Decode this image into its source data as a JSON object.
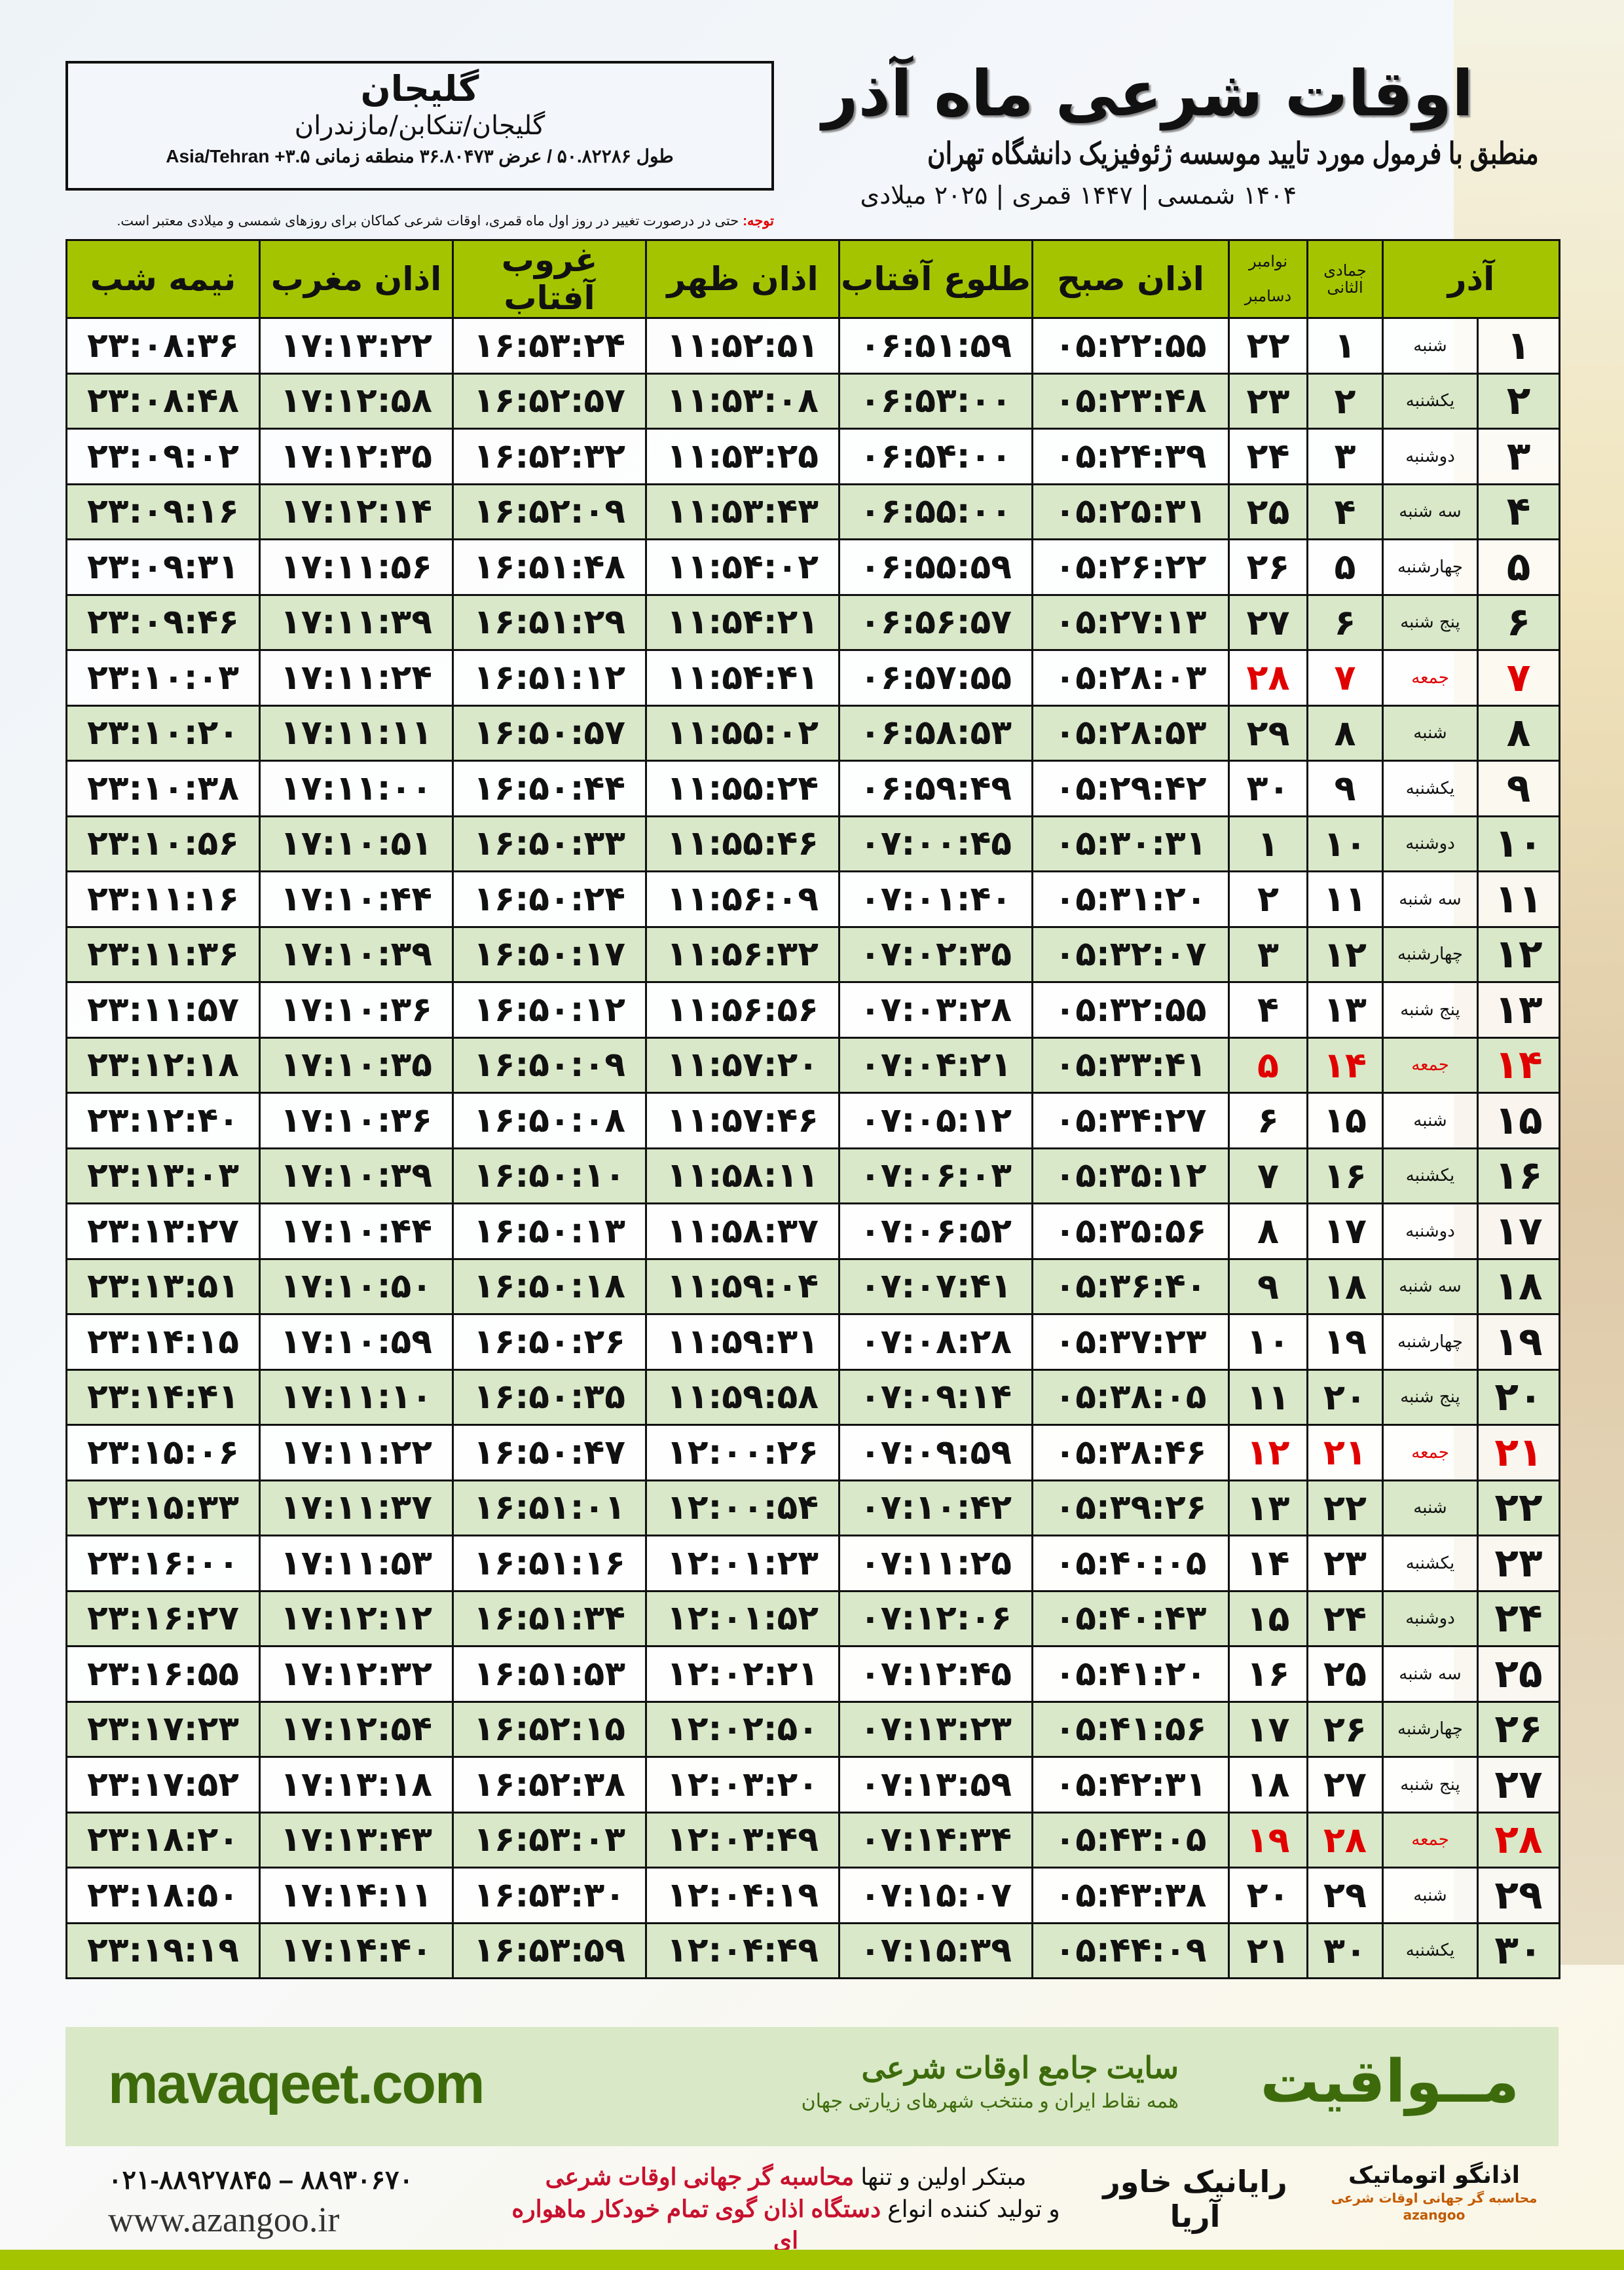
{
  "location": {
    "city": "گلیجان",
    "path": "گلیجان/تنکابن/مازندران",
    "coords": "طول ۵۰.۸۲۲۸۶ / عرض ۳۶.۸۰۴۷۳ منطقه زمانی ۳.۵+ Asia/Tehran"
  },
  "header": {
    "title": "اوقات شرعی ماه آذر",
    "subtitle": "منطبق با فرمول مورد تایید موسسه ژئوفیزیک دانشگاه تهران",
    "dates": "۱۴۰۴ شمسی | ۱۴۴۷ قمری | ۲۰۲۵ میلادی"
  },
  "note": {
    "label": "توجه:",
    "text": " حتی در درصورت تغییر در روز اول ماه قمری، اوقات شرعی کماکان برای روزهای شمسی و میلادی معتبر است."
  },
  "table": {
    "headers": {
      "azar": "آذر",
      "hijri": "جمادی الثانی",
      "greg_top": "نوامبر",
      "greg_bottom": "دسامبر",
      "sobh": "اذان صبح",
      "tolu": "طلوع آفتاب",
      "zuhr": "اذان ظهر",
      "ghurub": "غروب آفتاب",
      "maghrib": "اذان مغرب",
      "nimeh": "نیمه شب"
    },
    "highlight_color": "#e00000",
    "rows": [
      [
        "۱",
        "شنبه",
        "۱",
        "۲۲",
        "۰۵:۲۲:۵۵",
        "۰۶:۵۱:۵۹",
        "۱۱:۵۲:۵۱",
        "۱۶:۵۳:۲۴",
        "۱۷:۱۳:۲۲",
        "۲۳:۰۸:۳۶"
      ],
      [
        "۲",
        "یکشنبه",
        "۲",
        "۲۳",
        "۰۵:۲۳:۴۸",
        "۰۶:۵۳:۰۰",
        "۱۱:۵۳:۰۸",
        "۱۶:۵۲:۵۷",
        "۱۷:۱۲:۵۸",
        "۲۳:۰۸:۴۸"
      ],
      [
        "۳",
        "دوشنبه",
        "۳",
        "۲۴",
        "۰۵:۲۴:۳۹",
        "۰۶:۵۴:۰۰",
        "۱۱:۵۳:۲۵",
        "۱۶:۵۲:۳۲",
        "۱۷:۱۲:۳۵",
        "۲۳:۰۹:۰۲"
      ],
      [
        "۴",
        "سه شنبه",
        "۴",
        "۲۵",
        "۰۵:۲۵:۳۱",
        "۰۶:۵۵:۰۰",
        "۱۱:۵۳:۴۳",
        "۱۶:۵۲:۰۹",
        "۱۷:۱۲:۱۴",
        "۲۳:۰۹:۱۶"
      ],
      [
        "۵",
        "چهارشنبه",
        "۵",
        "۲۶",
        "۰۵:۲۶:۲۲",
        "۰۶:۵۵:۵۹",
        "۱۱:۵۴:۰۲",
        "۱۶:۵۱:۴۸",
        "۱۷:۱۱:۵۶",
        "۲۳:۰۹:۳۱"
      ],
      [
        "۶",
        "پنج شنبه",
        "۶",
        "۲۷",
        "۰۵:۲۷:۱۳",
        "۰۶:۵۶:۵۷",
        "۱۱:۵۴:۲۱",
        "۱۶:۵۱:۲۹",
        "۱۷:۱۱:۳۹",
        "۲۳:۰۹:۴۶"
      ],
      [
        "۷",
        "جمعه",
        "۷",
        "۲۸",
        "۰۵:۲۸:۰۳",
        "۰۶:۵۷:۵۵",
        "۱۱:۵۴:۴۱",
        "۱۶:۵۱:۱۲",
        "۱۷:۱۱:۲۴",
        "۲۳:۱۰:۰۳"
      ],
      [
        "۸",
        "شنبه",
        "۸",
        "۲۹",
        "۰۵:۲۸:۵۳",
        "۰۶:۵۸:۵۳",
        "۱۱:۵۵:۰۲",
        "۱۶:۵۰:۵۷",
        "۱۷:۱۱:۱۱",
        "۲۳:۱۰:۲۰"
      ],
      [
        "۹",
        "یکشنبه",
        "۹",
        "۳۰",
        "۰۵:۲۹:۴۲",
        "۰۶:۵۹:۴۹",
        "۱۱:۵۵:۲۴",
        "۱۶:۵۰:۴۴",
        "۱۷:۱۱:۰۰",
        "۲۳:۱۰:۳۸"
      ],
      [
        "۱۰",
        "دوشنبه",
        "۱۰",
        "۱",
        "۰۵:۳۰:۳۱",
        "۰۷:۰۰:۴۵",
        "۱۱:۵۵:۴۶",
        "۱۶:۵۰:۳۳",
        "۱۷:۱۰:۵۱",
        "۲۳:۱۰:۵۶"
      ],
      [
        "۱۱",
        "سه شنبه",
        "۱۱",
        "۲",
        "۰۵:۳۱:۲۰",
        "۰۷:۰۱:۴۰",
        "۱۱:۵۶:۰۹",
        "۱۶:۵۰:۲۴",
        "۱۷:۱۰:۴۴",
        "۲۳:۱۱:۱۶"
      ],
      [
        "۱۲",
        "چهارشنبه",
        "۱۲",
        "۳",
        "۰۵:۳۲:۰۷",
        "۰۷:۰۲:۳۵",
        "۱۱:۵۶:۳۲",
        "۱۶:۵۰:۱۷",
        "۱۷:۱۰:۳۹",
        "۲۳:۱۱:۳۶"
      ],
      [
        "۱۳",
        "پنج شنبه",
        "۱۳",
        "۴",
        "۰۵:۳۲:۵۵",
        "۰۷:۰۳:۲۸",
        "۱۱:۵۶:۵۶",
        "۱۶:۵۰:۱۲",
        "۱۷:۱۰:۳۶",
        "۲۳:۱۱:۵۷"
      ],
      [
        "۱۴",
        "جمعه",
        "۱۴",
        "۵",
        "۰۵:۳۳:۴۱",
        "۰۷:۰۴:۲۱",
        "۱۱:۵۷:۲۰",
        "۱۶:۵۰:۰۹",
        "۱۷:۱۰:۳۵",
        "۲۳:۱۲:۱۸"
      ],
      [
        "۱۵",
        "شنبه",
        "۱۵",
        "۶",
        "۰۵:۳۴:۲۷",
        "۰۷:۰۵:۱۲",
        "۱۱:۵۷:۴۶",
        "۱۶:۵۰:۰۸",
        "۱۷:۱۰:۳۶",
        "۲۳:۱۲:۴۰"
      ],
      [
        "۱۶",
        "یکشنبه",
        "۱۶",
        "۷",
        "۰۵:۳۵:۱۲",
        "۰۷:۰۶:۰۳",
        "۱۱:۵۸:۱۱",
        "۱۶:۵۰:۱۰",
        "۱۷:۱۰:۳۹",
        "۲۳:۱۳:۰۳"
      ],
      [
        "۱۷",
        "دوشنبه",
        "۱۷",
        "۸",
        "۰۵:۳۵:۵۶",
        "۰۷:۰۶:۵۲",
        "۱۱:۵۸:۳۷",
        "۱۶:۵۰:۱۳",
        "۱۷:۱۰:۴۴",
        "۲۳:۱۳:۲۷"
      ],
      [
        "۱۸",
        "سه شنبه",
        "۱۸",
        "۹",
        "۰۵:۳۶:۴۰",
        "۰۷:۰۷:۴۱",
        "۱۱:۵۹:۰۴",
        "۱۶:۵۰:۱۸",
        "۱۷:۱۰:۵۰",
        "۲۳:۱۳:۵۱"
      ],
      [
        "۱۹",
        "چهارشنبه",
        "۱۹",
        "۱۰",
        "۰۵:۳۷:۲۳",
        "۰۷:۰۸:۲۸",
        "۱۱:۵۹:۳۱",
        "۱۶:۵۰:۲۶",
        "۱۷:۱۰:۵۹",
        "۲۳:۱۴:۱۵"
      ],
      [
        "۲۰",
        "پنج شنبه",
        "۲۰",
        "۱۱",
        "۰۵:۳۸:۰۵",
        "۰۷:۰۹:۱۴",
        "۱۱:۵۹:۵۸",
        "۱۶:۵۰:۳۵",
        "۱۷:۱۱:۱۰",
        "۲۳:۱۴:۴۱"
      ],
      [
        "۲۱",
        "جمعه",
        "۲۱",
        "۱۲",
        "۰۵:۳۸:۴۶",
        "۰۷:۰۹:۵۹",
        "۱۲:۰۰:۲۶",
        "۱۶:۵۰:۴۷",
        "۱۷:۱۱:۲۲",
        "۲۳:۱۵:۰۶"
      ],
      [
        "۲۲",
        "شنبه",
        "۲۲",
        "۱۳",
        "۰۵:۳۹:۲۶",
        "۰۷:۱۰:۴۲",
        "۱۲:۰۰:۵۴",
        "۱۶:۵۱:۰۱",
        "۱۷:۱۱:۳۷",
        "۲۳:۱۵:۳۳"
      ],
      [
        "۲۳",
        "یکشنبه",
        "۲۳",
        "۱۴",
        "۰۵:۴۰:۰۵",
        "۰۷:۱۱:۲۵",
        "۱۲:۰۱:۲۳",
        "۱۶:۵۱:۱۶",
        "۱۷:۱۱:۵۳",
        "۲۳:۱۶:۰۰"
      ],
      [
        "۲۴",
        "دوشنبه",
        "۲۴",
        "۱۵",
        "۰۵:۴۰:۴۳",
        "۰۷:۱۲:۰۶",
        "۱۲:۰۱:۵۲",
        "۱۶:۵۱:۳۴",
        "۱۷:۱۲:۱۲",
        "۲۳:۱۶:۲۷"
      ],
      [
        "۲۵",
        "سه شنبه",
        "۲۵",
        "۱۶",
        "۰۵:۴۱:۲۰",
        "۰۷:۱۲:۴۵",
        "۱۲:۰۲:۲۱",
        "۱۶:۵۱:۵۳",
        "۱۷:۱۲:۳۲",
        "۲۳:۱۶:۵۵"
      ],
      [
        "۲۶",
        "چهارشنبه",
        "۲۶",
        "۱۷",
        "۰۵:۴۱:۵۶",
        "۰۷:۱۳:۲۳",
        "۱۲:۰۲:۵۰",
        "۱۶:۵۲:۱۵",
        "۱۷:۱۲:۵۴",
        "۲۳:۱۷:۲۳"
      ],
      [
        "۲۷",
        "پنج شنبه",
        "۲۷",
        "۱۸",
        "۰۵:۴۲:۳۱",
        "۰۷:۱۳:۵۹",
        "۱۲:۰۳:۲۰",
        "۱۶:۵۲:۳۸",
        "۱۷:۱۳:۱۸",
        "۲۳:۱۷:۵۲"
      ],
      [
        "۲۸",
        "جمعه",
        "۲۸",
        "۱۹",
        "۰۵:۴۳:۰۵",
        "۰۷:۱۴:۳۴",
        "۱۲:۰۳:۴۹",
        "۱۶:۵۳:۰۳",
        "۱۷:۱۳:۴۳",
        "۲۳:۱۸:۲۰"
      ],
      [
        "۲۹",
        "شنبه",
        "۲۹",
        "۲۰",
        "۰۵:۴۳:۳۸",
        "۰۷:۱۵:۰۷",
        "۱۲:۰۴:۱۹",
        "۱۶:۵۳:۳۰",
        "۱۷:۱۴:۱۱",
        "۲۳:۱۸:۵۰"
      ],
      [
        "۳۰",
        "یکشنبه",
        "۳۰",
        "۲۱",
        "۰۵:۴۴:۰۹",
        "۰۷:۱۵:۳۹",
        "۱۲:۰۴:۴۹",
        "۱۶:۵۳:۵۹",
        "۱۷:۱۴:۴۰",
        "۲۳:۱۹:۱۹"
      ]
    ]
  },
  "footer": {
    "brand": "مــواقیت",
    "tagline": "سایت جامع اوقات شرعی",
    "tagline_small": "همه نقاط ایران و منتخب شهرهای زیارتی جهان",
    "site": "mavaqeet.com",
    "phones": "۰۲۱-۸۸۹۲۷۸۴۵ – ۸۸۹۳۰۶۷۰",
    "web": "www.azangoo.ir",
    "promo_1a": "مبتکر اولین و تنها ",
    "promo_1b": "محاسبه گر جهانی اوقات شرعی",
    "promo_2a": "و تولید کننده انواع ",
    "promo_2b": "دستگاه اذان گوی تمام خودکار ماهواره ای",
    "logo_rayanik": "رایانیک خاور آریا",
    "logo_azangoo": "اذانگو اتوماتیک",
    "logo_azangoo_sub": "محاسبه گر جهانی اوقات شرعی",
    "logo_azangoo_en": "azangoo"
  },
  "colors": {
    "header_green": "#a5c400",
    "row_green": "#d9e8c8",
    "brand_green": "#3d6b0c"
  }
}
